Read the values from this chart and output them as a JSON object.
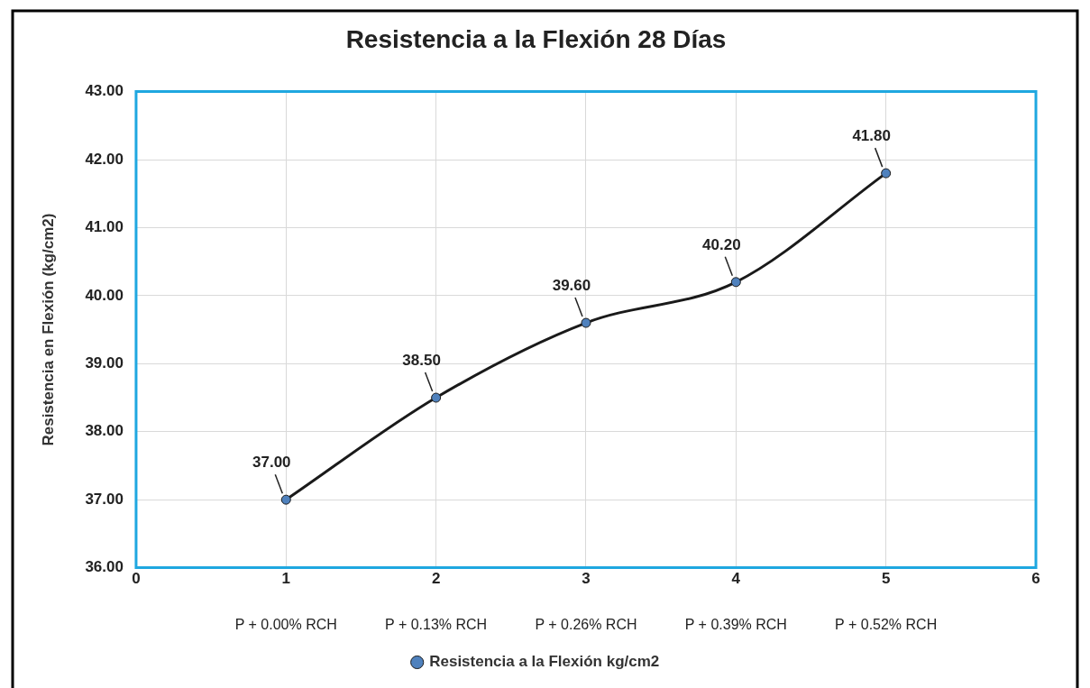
{
  "chart_data": {
    "type": "line",
    "title": "Resistencia a la Flexión 28 Días",
    "ylabel": "Resistencia en Flexión (kg/cm2)",
    "x": [
      1,
      2,
      3,
      4,
      5
    ],
    "series": [
      {
        "name": "Resistencia a la Flexión kg/cm2",
        "color": "#1a1a1a",
        "values": [
          37,
          38.5,
          39.6,
          40.2,
          41.8
        ],
        "value_labels": [
          "37.00",
          "38.50",
          "39.60",
          "40.20",
          "41.80"
        ]
      }
    ],
    "xlim": [
      0,
      6
    ],
    "xticks": [
      0,
      1,
      2,
      3,
      4,
      5,
      6
    ],
    "ylim": [
      36,
      43
    ],
    "yticks": [
      {
        "value": 36,
        "label": "36.00"
      },
      {
        "value": 37,
        "label": "37.00"
      },
      {
        "value": 38,
        "label": "38.00"
      },
      {
        "value": 39,
        "label": "39.00"
      },
      {
        "value": 40,
        "label": "40.00"
      },
      {
        "value": 41,
        "label": "41.00"
      },
      {
        "value": 42,
        "label": "42.00"
      },
      {
        "value": 43,
        "label": "43.00"
      }
    ],
    "annotations": [
      "P + 0.00% RCH",
      "P + 0.13% RCH",
      "P + 0.26% RCH",
      "P + 0.39% RCH",
      "P + 0.52% RCH"
    ],
    "grid": true,
    "legend": "bottom",
    "marker": "circle",
    "line_style": "solid"
  }
}
